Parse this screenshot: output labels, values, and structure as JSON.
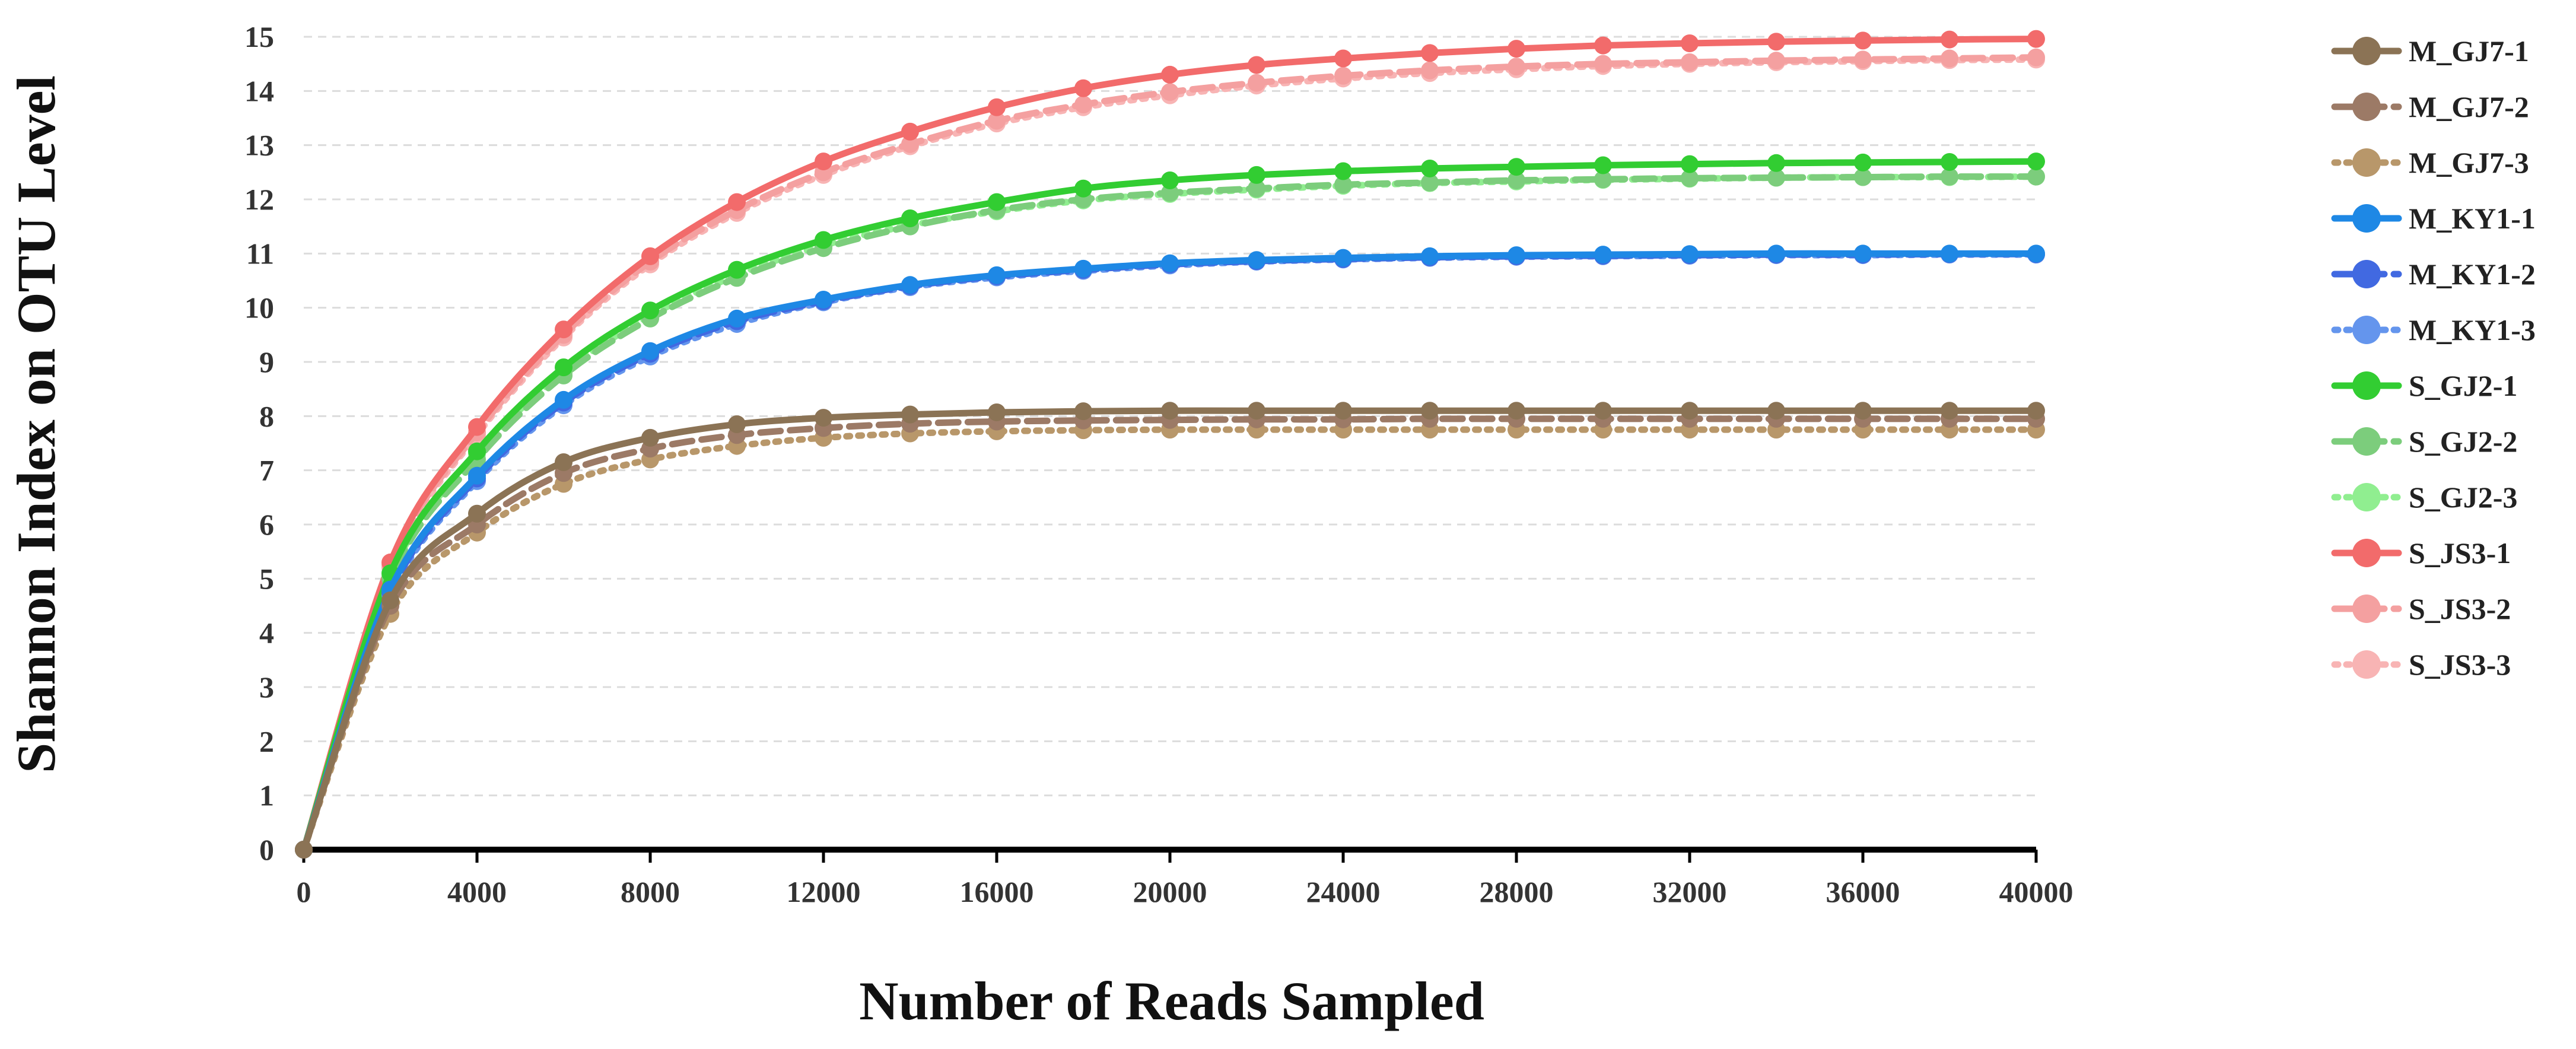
{
  "chart_data": {
    "type": "line",
    "title": "",
    "xlabel": "Number of Reads Sampled",
    "ylabel": "Shannon Index on OTU Level",
    "xlim": [
      0,
      40000
    ],
    "ylim": [
      0,
      15
    ],
    "x_ticks": [
      "0",
      "4000",
      "8000",
      "12000",
      "16000",
      "20000",
      "24000",
      "28000",
      "32000",
      "36000",
      "40000"
    ],
    "y_ticks": [
      "0",
      "1",
      "2",
      "3",
      "4",
      "5",
      "6",
      "7",
      "8",
      "9",
      "10",
      "11",
      "12",
      "13",
      "14",
      "15"
    ],
    "grid": "horizontal dashed",
    "legend_position": "right",
    "x": [
      0,
      2000,
      4000,
      6000,
      8000,
      10000,
      12000,
      14000,
      16000,
      18000,
      20000,
      22000,
      24000,
      26000,
      28000,
      30000,
      32000,
      34000,
      36000,
      38000,
      40000
    ],
    "series": [
      {
        "name": "M_GJ7-1",
        "color": "#8B7355",
        "dash": "solid",
        "values": [
          0,
          4.6,
          6.2,
          7.15,
          7.6,
          7.85,
          7.97,
          8.03,
          8.07,
          8.09,
          8.1,
          8.1,
          8.1,
          8.1,
          8.1,
          8.1,
          8.1,
          8.1,
          8.1,
          8.1,
          8.1
        ]
      },
      {
        "name": "M_GJ7-2",
        "color": "#9C7A66",
        "dash": "dashed",
        "values": [
          0,
          4.5,
          6.0,
          6.95,
          7.4,
          7.65,
          7.78,
          7.86,
          7.9,
          7.92,
          7.93,
          7.94,
          7.94,
          7.95,
          7.95,
          7.95,
          7.95,
          7.95,
          7.95,
          7.95,
          7.95
        ]
      },
      {
        "name": "M_GJ7-3",
        "color": "#B8976A",
        "dash": "dotted",
        "values": [
          0,
          4.35,
          5.85,
          6.75,
          7.2,
          7.45,
          7.6,
          7.68,
          7.72,
          7.74,
          7.75,
          7.75,
          7.75,
          7.75,
          7.75,
          7.75,
          7.75,
          7.75,
          7.75,
          7.75,
          7.75
        ]
      },
      {
        "name": "M_KY1-1",
        "color": "#1E88E5",
        "dash": "solid",
        "values": [
          0,
          4.8,
          6.9,
          8.3,
          9.2,
          9.8,
          10.15,
          10.42,
          10.6,
          10.72,
          10.82,
          10.88,
          10.92,
          10.95,
          10.97,
          10.98,
          10.99,
          11.0,
          11.0,
          11.0,
          11.0
        ]
      },
      {
        "name": "M_KY1-2",
        "color": "#4169E1",
        "dash": "dashed",
        "values": [
          0,
          4.75,
          6.85,
          8.25,
          9.15,
          9.75,
          10.12,
          10.4,
          10.58,
          10.7,
          10.8,
          10.86,
          10.9,
          10.93,
          10.95,
          10.96,
          10.97,
          10.98,
          10.98,
          10.99,
          10.99
        ]
      },
      {
        "name": "M_KY1-3",
        "color": "#6495ED",
        "dash": "dotted",
        "values": [
          0,
          4.7,
          6.8,
          8.2,
          9.1,
          9.7,
          10.1,
          10.38,
          10.56,
          10.68,
          10.78,
          10.85,
          10.89,
          10.92,
          10.94,
          10.95,
          10.96,
          10.97,
          10.97,
          10.98,
          10.98
        ]
      },
      {
        "name": "S_GJ2-1",
        "color": "#32CD32",
        "dash": "solid",
        "values": [
          0,
          5.1,
          7.35,
          8.9,
          9.95,
          10.7,
          11.25,
          11.65,
          11.95,
          12.2,
          12.35,
          12.45,
          12.52,
          12.57,
          12.6,
          12.63,
          12.65,
          12.67,
          12.68,
          12.69,
          12.7
        ]
      },
      {
        "name": "S_GJ2-2",
        "color": "#7CCD7C",
        "dash": "dashed",
        "values": [
          0,
          5.0,
          7.2,
          8.75,
          9.8,
          10.55,
          11.1,
          11.5,
          11.8,
          12.0,
          12.12,
          12.2,
          12.27,
          12.31,
          12.35,
          12.37,
          12.39,
          12.4,
          12.41,
          12.42,
          12.42
        ]
      },
      {
        "name": "S_GJ2-3",
        "color": "#90EE90",
        "dash": "dotted",
        "values": [
          0,
          5.05,
          7.3,
          8.8,
          9.85,
          10.6,
          11.15,
          11.52,
          11.78,
          11.98,
          12.1,
          12.18,
          12.25,
          12.3,
          12.33,
          12.36,
          12.38,
          12.4,
          12.41,
          12.41,
          12.42
        ]
      },
      {
        "name": "S_JS3-1",
        "color": "#F26B6B",
        "dash": "solid",
        "values": [
          0,
          5.3,
          7.8,
          9.6,
          10.95,
          11.95,
          12.7,
          13.25,
          13.7,
          14.05,
          14.3,
          14.48,
          14.6,
          14.7,
          14.78,
          14.84,
          14.88,
          14.91,
          14.93,
          14.95,
          14.96
        ]
      },
      {
        "name": "S_JS3-2",
        "color": "#F4A0A0",
        "dash": "dashed",
        "values": [
          0,
          5.25,
          7.7,
          9.5,
          10.85,
          11.8,
          12.5,
          13.02,
          13.45,
          13.75,
          13.98,
          14.15,
          14.28,
          14.38,
          14.45,
          14.5,
          14.53,
          14.56,
          14.58,
          14.6,
          14.62
        ]
      },
      {
        "name": "S_JS3-3",
        "color": "#F8B4B4",
        "dash": "dotted",
        "values": [
          0,
          5.2,
          7.65,
          9.45,
          10.8,
          11.75,
          12.45,
          12.98,
          13.4,
          13.7,
          13.92,
          14.1,
          14.23,
          14.33,
          14.4,
          14.46,
          14.5,
          14.53,
          14.55,
          14.57,
          14.58
        ]
      }
    ]
  }
}
